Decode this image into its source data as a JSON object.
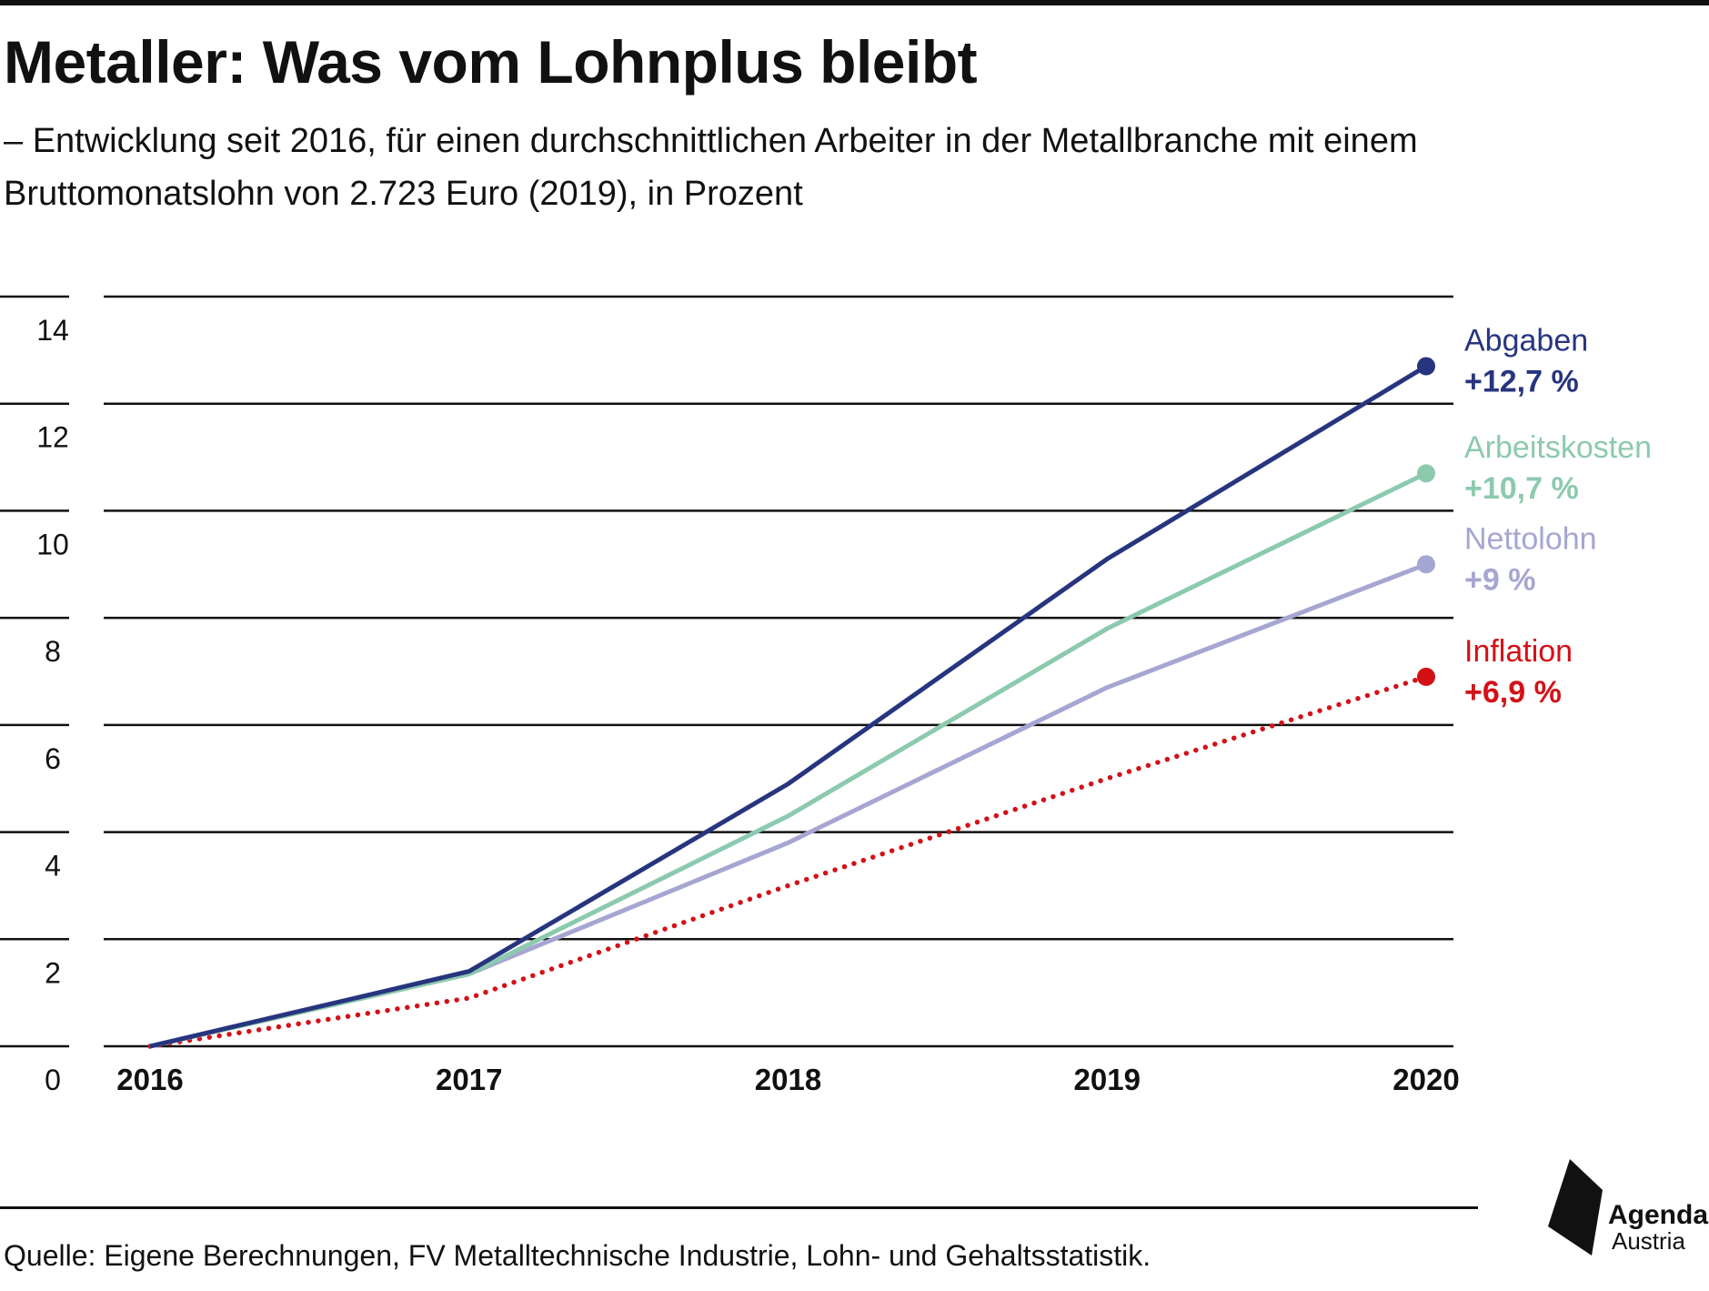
{
  "title": "Metaller: Was vom Lohnplus bleibt",
  "subtitle": "– Entwicklung seit 2016, für einen durchschnittlichen Arbeiter in der Metallbranche mit einem Bruttomonatslohn von 2.723 Euro (2019), in Prozent",
  "source": "Quelle: Eigene Berechnungen, FV Metalltechnische Industrie, Lohn- und Gehaltsstatistik.",
  "logo": {
    "line1": "Agenda",
    "line2": "Austria"
  },
  "chart_data": {
    "type": "line",
    "x": [
      2016,
      2017,
      2018,
      2019,
      2020
    ],
    "x_tick_labels": [
      "2016",
      "2017",
      "2018",
      "2019",
      "2020"
    ],
    "ylim": [
      0,
      14
    ],
    "y_ticks": [
      0,
      2,
      4,
      6,
      8,
      10,
      12,
      14
    ],
    "y_tick_labels": [
      "0",
      "2",
      "4",
      "6",
      "8",
      "10",
      "12",
      "14"
    ],
    "grid": true,
    "legend": "direct labels at line ends, right side",
    "series": [
      {
        "name": "Abgaben",
        "end_label": "+12,7 %",
        "values": [
          0,
          1.4,
          4.9,
          9.1,
          12.7
        ],
        "color": "#27357f",
        "style": "solid"
      },
      {
        "name": "Arbeitskosten",
        "end_label": "+10,7 %",
        "values": [
          0,
          1.35,
          4.3,
          7.8,
          10.7
        ],
        "color": "#8ccaad",
        "style": "solid"
      },
      {
        "name": "Nettolohn",
        "end_label": "+9 %",
        "values": [
          0,
          1.35,
          3.8,
          6.7,
          9.0
        ],
        "color": "#a6a6d2",
        "style": "solid"
      },
      {
        "name": "Inflation",
        "end_label": "+6,9 %",
        "values": [
          0,
          0.9,
          3.0,
          5.0,
          6.9
        ],
        "color": "#d41017",
        "style": "dotted"
      }
    ]
  }
}
